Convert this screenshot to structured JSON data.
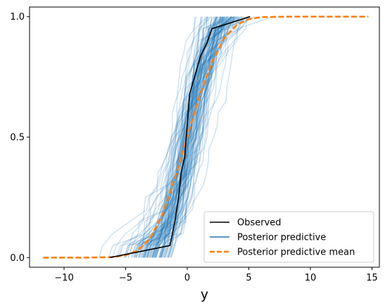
{
  "chart_data": {
    "type": "line",
    "title": "",
    "xlabel": "y",
    "ylabel": "",
    "xlim": [
      -12.8,
      15.6
    ],
    "ylim": [
      -0.04,
      1.04
    ],
    "grid": false,
    "legend_placement": "lower-right",
    "x_ticks": [
      -10,
      -5,
      0,
      5,
      10,
      15
    ],
    "x_tick_labels": [
      "−10",
      "−5",
      "0",
      "5",
      "10",
      "15"
    ],
    "y_ticks": [
      0,
      0.5,
      1
    ],
    "y_tick_labels": [
      "0.0",
      "0.5",
      "1.0"
    ],
    "series": [
      {
        "name": "Observed",
        "color": "#000000",
        "style": "solid",
        "points": [
          [
            -6.3,
            0.0
          ],
          [
            -1.4,
            0.05
          ],
          [
            -1.0,
            0.15
          ],
          [
            -0.7,
            0.25
          ],
          [
            -0.5,
            0.35
          ],
          [
            -0.2,
            0.42
          ],
          [
            0.0,
            0.55
          ],
          [
            0.2,
            0.68
          ],
          [
            0.6,
            0.75
          ],
          [
            1.1,
            0.84
          ],
          [
            1.6,
            0.89
          ],
          [
            2.0,
            0.95
          ],
          [
            5.1,
            1.0
          ]
        ]
      },
      {
        "name": "Posterior predictive",
        "color": "#1f77b4",
        "style": "solid",
        "n_draws": 100,
        "location": 0.2,
        "scale": 1.55
      },
      {
        "name": "Posterior predictive mean",
        "color": "#ff7f0e",
        "style": "dashed",
        "points": [
          [
            -11.7,
            0.0
          ],
          [
            -8.0,
            0.0
          ],
          [
            -6.0,
            0.002
          ],
          [
            -5.0,
            0.01
          ],
          [
            -4.0,
            0.03
          ],
          [
            -3.0,
            0.08
          ],
          [
            -2.0,
            0.18
          ],
          [
            -1.0,
            0.33
          ],
          [
            0.0,
            0.5
          ],
          [
            1.0,
            0.67
          ],
          [
            2.0,
            0.81
          ],
          [
            3.0,
            0.91
          ],
          [
            4.0,
            0.965
          ],
          [
            5.0,
            0.99
          ],
          [
            6.0,
            0.998
          ],
          [
            8.0,
            1.0
          ],
          [
            14.7,
            1.0
          ]
        ]
      }
    ]
  }
}
